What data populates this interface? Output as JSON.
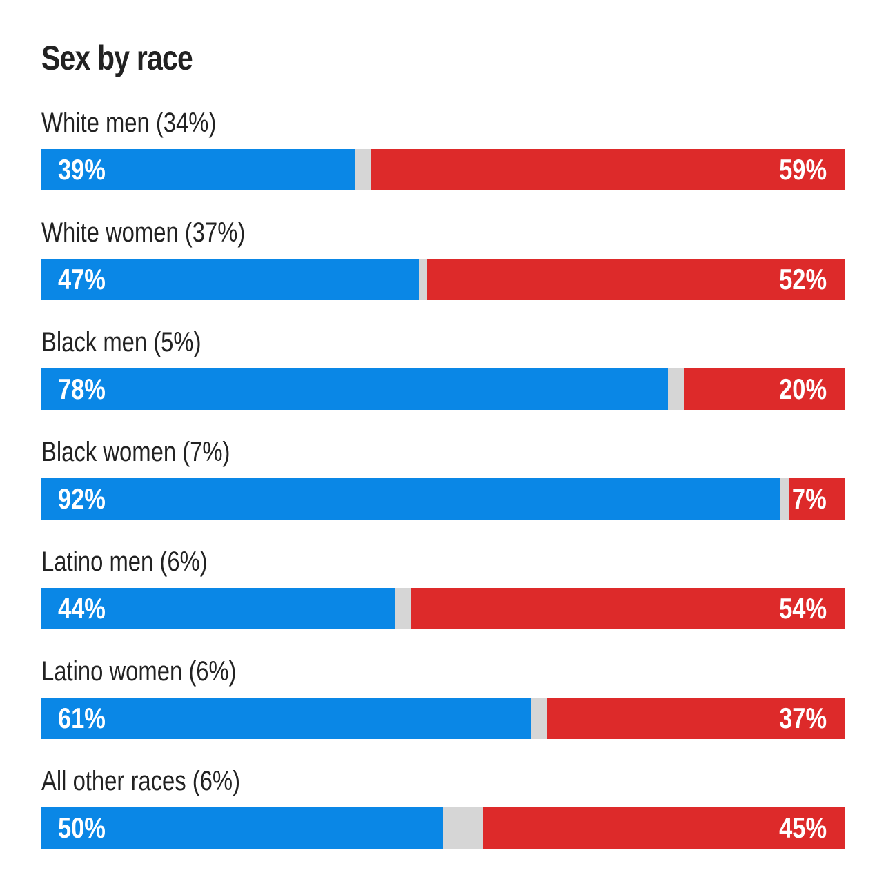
{
  "chart_data": {
    "type": "bar",
    "title": "Sex by race",
    "xlim": [
      0,
      100
    ],
    "categories": [
      "White men (34%)",
      "White women (37%)",
      "Black men (5%)",
      "Black women (7%)",
      "Latino men (6%)",
      "Latino women (6%)",
      "All other races (6%)"
    ],
    "series": [
      {
        "values": [
          39,
          47,
          78,
          92,
          44,
          61,
          50
        ],
        "labels": [
          "39%",
          "47%",
          "78%",
          "92%",
          "44%",
          "61%",
          "50%"
        ]
      },
      {
        "values": [
          59,
          52,
          20,
          7,
          54,
          37,
          45
        ],
        "labels": [
          "59%",
          "52%",
          "20%",
          "7%",
          "54%",
          "37%",
          "45%"
        ]
      }
    ],
    "colors": {
      "left": "#0a87e6",
      "right": "#dd2a2a",
      "remainder": "#d6d6d6"
    }
  }
}
